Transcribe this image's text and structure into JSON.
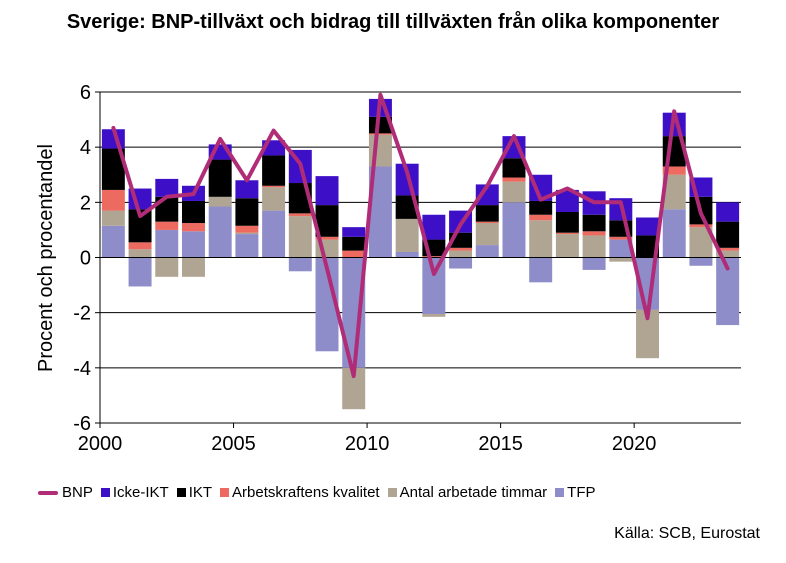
{
  "chart_data": {
    "type": "bar",
    "title": "Sverige: BNP-tillväxt och bidrag till tillväxten från olika komponenter",
    "ylabel": "Procent och procentandel",
    "xlabel": "",
    "ylim": [
      -6,
      6
    ],
    "yticks": [
      6,
      4,
      2,
      0,
      -2,
      -4,
      -6
    ],
    "xticks": [
      2000,
      2005,
      2010,
      2015,
      2020
    ],
    "x": [
      2000,
      2001,
      2002,
      2003,
      2004,
      2005,
      2006,
      2007,
      2008,
      2009,
      2010,
      2011,
      2012,
      2013,
      2014,
      2015,
      2016,
      2017,
      2018,
      2019,
      2020,
      2021,
      2022,
      2023
    ],
    "grid": true,
    "legend_position": "bottom",
    "stacked": true,
    "series": [
      {
        "name": "TFP",
        "kind": "bar",
        "color": "#8f8dc9",
        "values": [
          1.15,
          -1.05,
          1.0,
          0.95,
          1.85,
          0.85,
          1.7,
          -0.5,
          -3.4,
          -4.0,
          3.3,
          0.2,
          -2.05,
          -0.4,
          0.45,
          2.0,
          -0.9,
          0.0,
          -0.45,
          0.65,
          -1.9,
          1.75,
          -0.3,
          -2.45
        ]
      },
      {
        "name": "Antal arbetade timmar",
        "kind": "bar",
        "color": "#b0a592",
        "values": [
          0.55,
          0.3,
          -0.7,
          -0.7,
          0.35,
          0.05,
          0.85,
          1.5,
          0.65,
          -1.5,
          1.15,
          1.2,
          -0.1,
          0.25,
          0.8,
          0.75,
          1.35,
          0.85,
          0.8,
          -0.15,
          -1.75,
          1.25,
          1.1,
          0.25
        ]
      },
      {
        "name": "Arbetskraftens kvalitet",
        "kind": "bar",
        "color": "#ec6a5f",
        "values": [
          0.75,
          0.25,
          0.3,
          0.3,
          0.0,
          0.25,
          0.05,
          0.1,
          0.1,
          0.25,
          0.05,
          0.0,
          0.05,
          0.1,
          0.05,
          0.15,
          0.2,
          0.05,
          0.15,
          0.1,
          0.0,
          0.3,
          0.1,
          0.1
        ]
      },
      {
        "name": "IKT",
        "kind": "bar",
        "color": "#000000",
        "values": [
          1.5,
          1.2,
          0.9,
          0.8,
          1.35,
          1.0,
          1.1,
          1.1,
          1.15,
          0.5,
          0.6,
          0.85,
          0.6,
          0.55,
          0.6,
          0.7,
          0.5,
          0.75,
          0.6,
          0.6,
          0.8,
          1.1,
          1.0,
          0.95
        ]
      },
      {
        "name": "Icke-IKT",
        "kind": "bar",
        "color": "#3d10c8",
        "values": [
          0.7,
          0.75,
          0.65,
          0.55,
          0.55,
          0.65,
          0.55,
          1.2,
          1.05,
          0.35,
          0.65,
          1.15,
          0.9,
          0.8,
          0.75,
          0.8,
          0.95,
          0.8,
          0.85,
          0.8,
          0.65,
          0.85,
          0.7,
          0.7
        ]
      },
      {
        "name": "BNP",
        "kind": "line",
        "color": "#b02c77",
        "values": [
          4.7,
          1.5,
          2.2,
          2.3,
          4.3,
          2.8,
          4.6,
          3.4,
          -0.4,
          -4.3,
          5.9,
          3.1,
          -0.6,
          1.2,
          2.6,
          4.4,
          2.1,
          2.5,
          2.0,
          2.0,
          -2.2,
          5.3,
          1.6,
          -0.4
        ]
      }
    ]
  },
  "legend": {
    "bnp": "BNP",
    "icke_ikt": "Icke-IKT",
    "ikt": "IKT",
    "kvalitet": "Arbetskraftens kvalitet",
    "timmar": "Antal arbetade timmar",
    "tfp": "TFP"
  },
  "colors": {
    "bnp": "#b02c77",
    "icke_ikt": "#3d10c8",
    "ikt": "#000000",
    "kvalitet": "#ec6a5f",
    "timmar": "#b0a592",
    "tfp": "#8f8dc9"
  },
  "source": "Källa: SCB, Eurostat"
}
